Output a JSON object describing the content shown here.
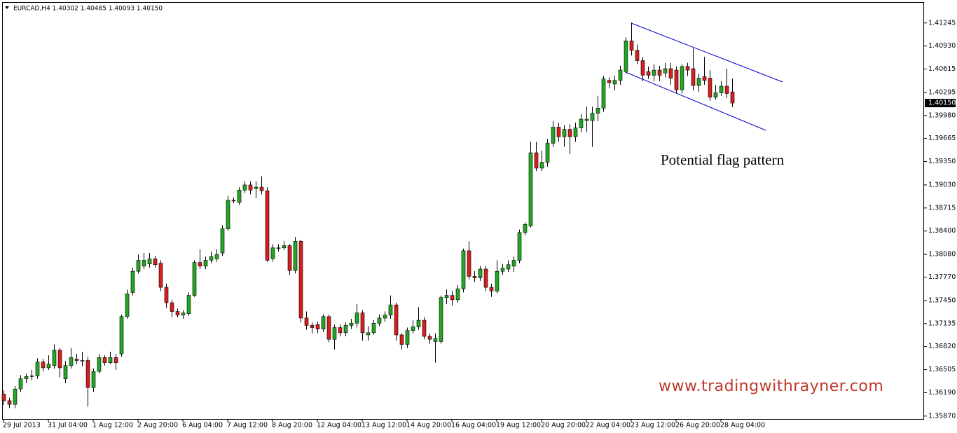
{
  "chart_data": {
    "type": "candlestick",
    "header": "EURCAD,H4  1.40302 1.40485 1.40093 1.40150",
    "annotations": [
      "Potential flag pattern"
    ],
    "watermark": "www.tradingwithrayner.com",
    "up_color": "#22a722",
    "down_color": "#d81e1e",
    "ylim": [
      1.3583,
      1.4153
    ],
    "yticks": [
      1.41245,
      {
        "value": 1.4093,
        "label": "1.40930"
      },
      1.40615,
      1.40295,
      {
        "value": 1.3998,
        "label": "1.39980"
      },
      1.39665,
      {
        "value": 1.3935,
        "label": "1.39350"
      },
      {
        "value": 1.3903,
        "label": "1.39030"
      },
      1.38715,
      {
        "value": 1.384,
        "label": "1.38400"
      },
      {
        "value": 1.3808,
        "label": "1.38080"
      },
      {
        "value": 1.3777,
        "label": "1.37770"
      },
      {
        "value": 1.3745,
        "label": "1.37450"
      },
      1.37135,
      {
        "value": 1.3682,
        "label": "1.36820"
      },
      1.36505,
      {
        "value": 1.3619,
        "label": "1.36190"
      },
      {
        "value": 1.3587,
        "label": "1.35870"
      }
    ],
    "last_price": {
      "value": 1.4015,
      "label": "1.40150"
    },
    "categories": [
      "29 Jul 2013",
      null,
      null,
      null,
      null,
      null,
      null,
      null,
      "31 Jul 04:00",
      null,
      null,
      null,
      null,
      null,
      null,
      null,
      "1 Aug 12:00",
      null,
      null,
      null,
      null,
      null,
      null,
      null,
      "2 Aug 20:00",
      null,
      null,
      null,
      null,
      null,
      null,
      null,
      "6 Aug 04:00",
      null,
      null,
      null,
      null,
      null,
      null,
      null,
      "7 Aug 12:00",
      null,
      null,
      null,
      null,
      null,
      null,
      null,
      "8 Aug 20:00",
      null,
      null,
      null,
      null,
      null,
      null,
      null,
      "12 Aug 04:00",
      null,
      null,
      null,
      null,
      null,
      null,
      null,
      "13 Aug 12:00",
      null,
      null,
      null,
      null,
      null,
      null,
      null,
      "14 Aug 20:00",
      null,
      null,
      null,
      null,
      null,
      null,
      null,
      "16 Aug 04:00",
      null,
      null,
      null,
      null,
      null,
      null,
      null,
      "19 Aug 12:00",
      null,
      null,
      null,
      null,
      null,
      null,
      null,
      "20 Aug 20:00",
      null,
      null,
      null,
      null,
      null,
      null,
      null,
      "22 Aug 04:00",
      null,
      null,
      null,
      null,
      null,
      null,
      null,
      "23 Aug 12:00",
      null,
      null,
      null,
      null,
      null,
      null,
      null,
      "26 Aug 20:00",
      null,
      null,
      null,
      null,
      null,
      null,
      null,
      "28 Aug 04:00",
      null,
      null
    ],
    "candles": [
      [
        1.3617,
        1.3622,
        1.3602,
        1.3608
      ],
      [
        1.3608,
        1.3612,
        1.3598,
        1.3603
      ],
      [
        1.3603,
        1.3628,
        1.3598,
        1.3624
      ],
      [
        1.3624,
        1.3643,
        1.362,
        1.3638
      ],
      [
        1.3638,
        1.3645,
        1.3632,
        1.3641
      ],
      [
        1.3641,
        1.365,
        1.3636,
        1.3642
      ],
      [
        1.3642,
        1.3666,
        1.3638,
        1.3661
      ],
      [
        1.3661,
        1.3665,
        1.3648,
        1.3653
      ],
      [
        1.3653,
        1.367,
        1.365,
        1.3658
      ],
      [
        1.3656,
        1.3685,
        1.3652,
        1.3677
      ],
      [
        1.3677,
        1.368,
        1.364,
        1.3653
      ],
      [
        1.3638,
        1.3662,
        1.3632,
        1.3656
      ],
      [
        1.3656,
        1.368,
        1.3652,
        1.3667
      ],
      [
        1.3665,
        1.3672,
        1.3658,
        1.3663
      ],
      [
        1.3663,
        1.3675,
        1.3655,
        1.3663
      ],
      [
        1.3663,
        1.3668,
        1.36,
        1.3626
      ],
      [
        1.3626,
        1.3652,
        1.362,
        1.3648
      ],
      [
        1.3648,
        1.3672,
        1.3645,
        1.3667
      ],
      [
        1.3667,
        1.367,
        1.3656,
        1.366
      ],
      [
        1.366,
        1.3675,
        1.3658,
        1.3667
      ],
      [
        1.3667,
        1.3672,
        1.365,
        1.366
      ],
      [
        1.3672,
        1.3726,
        1.3668,
        1.3723
      ],
      [
        1.3723,
        1.376,
        1.372,
        1.3754
      ],
      [
        1.3756,
        1.379,
        1.3752,
        1.3785
      ],
      [
        1.3785,
        1.3808,
        1.3782,
        1.38
      ],
      [
        1.3792,
        1.381,
        1.3788,
        1.38
      ],
      [
        1.3795,
        1.381,
        1.379,
        1.3802
      ],
      [
        1.3802,
        1.3806,
        1.379,
        1.3794
      ],
      [
        1.3796,
        1.38,
        1.3758,
        1.3763
      ],
      [
        1.3763,
        1.3768,
        1.3735,
        1.3742
      ],
      [
        1.3742,
        1.3746,
        1.3722,
        1.373
      ],
      [
        1.373,
        1.3734,
        1.3722,
        1.3725
      ],
      [
        1.3725,
        1.3732,
        1.372,
        1.3728
      ],
      [
        1.3727,
        1.3756,
        1.3724,
        1.3752
      ],
      [
        1.3752,
        1.38,
        1.375,
        1.3797
      ],
      [
        1.3797,
        1.3815,
        1.3788,
        1.3792
      ],
      [
        1.3792,
        1.3805,
        1.3788,
        1.38
      ],
      [
        1.38,
        1.3812,
        1.3796,
        1.3805
      ],
      [
        1.3802,
        1.3815,
        1.3798,
        1.3808
      ],
      [
        1.381,
        1.3848,
        1.3806,
        1.3843
      ],
      [
        1.3843,
        1.3888,
        1.384,
        1.3882
      ],
      [
        1.3882,
        1.3886,
        1.3878,
        1.3881
      ],
      [
        1.3879,
        1.39,
        1.3876,
        1.3896
      ],
      [
        1.3896,
        1.3908,
        1.3892,
        1.3903
      ],
      [
        1.3903,
        1.3908,
        1.389,
        1.3896
      ],
      [
        1.3898,
        1.3908,
        1.3885,
        1.39
      ],
      [
        1.39,
        1.3915,
        1.389,
        1.3895
      ],
      [
        1.3895,
        1.39,
        1.3798,
        1.38
      ],
      [
        1.3802,
        1.3822,
        1.3798,
        1.3817
      ],
      [
        1.3817,
        1.3822,
        1.3812,
        1.3817
      ],
      [
        1.3817,
        1.3826,
        1.3814,
        1.382
      ],
      [
        1.382,
        1.3822,
        1.378,
        1.3786
      ],
      [
        1.3786,
        1.3832,
        1.3782,
        1.3826
      ],
      [
        1.3826,
        1.3828,
        1.3715,
        1.3721
      ],
      [
        1.3721,
        1.373,
        1.3705,
        1.3711
      ],
      [
        1.3711,
        1.3715,
        1.37,
        1.3708
      ],
      [
        1.3712,
        1.3716,
        1.37,
        1.3706
      ],
      [
        1.3706,
        1.3726,
        1.3702,
        1.3723
      ],
      [
        1.3723,
        1.3726,
        1.3688,
        1.3692
      ],
      [
        1.3692,
        1.3712,
        1.3678,
        1.3708
      ],
      [
        1.3708,
        1.3712,
        1.3696,
        1.3701
      ],
      [
        1.3701,
        1.3715,
        1.3696,
        1.3711
      ],
      [
        1.3711,
        1.372,
        1.3706,
        1.3714
      ],
      [
        1.3714,
        1.374,
        1.3708,
        1.3728
      ],
      [
        1.3728,
        1.3732,
        1.369,
        1.3701
      ],
      [
        1.3698,
        1.371,
        1.369,
        1.3701
      ],
      [
        1.3701,
        1.3718,
        1.3698,
        1.3714
      ],
      [
        1.3714,
        1.3726,
        1.371,
        1.3721
      ],
      [
        1.3721,
        1.373,
        1.3716,
        1.3725
      ],
      [
        1.3725,
        1.3752,
        1.372,
        1.3739
      ],
      [
        1.3739,
        1.3742,
        1.369,
        1.3698
      ],
      [
        1.3698,
        1.37,
        1.3678,
        1.3685
      ],
      [
        1.3685,
        1.3708,
        1.368,
        1.3704
      ],
      [
        1.3704,
        1.3718,
        1.37,
        1.3709
      ],
      [
        1.3709,
        1.3736,
        1.3705,
        1.3718
      ],
      [
        1.3718,
        1.3722,
        1.3692,
        1.3696
      ],
      [
        1.3696,
        1.37,
        1.3686,
        1.3692
      ],
      [
        1.3689,
        1.37,
        1.366,
        1.3693
      ],
      [
        1.3689,
        1.3752,
        1.3686,
        1.3749
      ],
      [
        1.3749,
        1.376,
        1.374,
        1.3752
      ],
      [
        1.3752,
        1.3758,
        1.3738,
        1.3746
      ],
      [
        1.3746,
        1.3766,
        1.3742,
        1.3761
      ],
      [
        1.3761,
        1.3816,
        1.3756,
        1.3813
      ],
      [
        1.3813,
        1.3826,
        1.3774,
        1.3778
      ],
      [
        1.3778,
        1.3785,
        1.377,
        1.3776
      ],
      [
        1.3776,
        1.3792,
        1.3772,
        1.3788
      ],
      [
        1.3788,
        1.3792,
        1.3758,
        1.3763
      ],
      [
        1.3763,
        1.3768,
        1.375,
        1.3758
      ],
      [
        1.3758,
        1.38,
        1.3755,
        1.3785
      ],
      [
        1.3785,
        1.3795,
        1.378,
        1.3789
      ],
      [
        1.3788,
        1.38,
        1.3784,
        1.3794
      ],
      [
        1.3792,
        1.3805,
        1.3784,
        1.38
      ],
      [
        1.38,
        1.3842,
        1.3796,
        1.3838
      ],
      [
        1.3838,
        1.3852,
        1.3834,
        1.3849
      ],
      [
        1.3847,
        1.3962,
        1.3845,
        1.3947
      ],
      [
        1.3947,
        1.3962,
        1.3922,
        1.3926
      ],
      [
        1.3926,
        1.395,
        1.3922,
        1.3934
      ],
      [
        1.3934,
        1.3966,
        1.3928,
        1.396
      ],
      [
        1.396,
        1.399,
        1.3955,
        1.3982
      ],
      [
        1.3982,
        1.3988,
        1.3962,
        1.3969
      ],
      [
        1.3969,
        1.3985,
        1.3955,
        1.3979
      ],
      [
        1.3979,
        1.3986,
        1.3945,
        1.3969
      ],
      [
        1.3969,
        1.3988,
        1.3962,
        1.3981
      ],
      [
        1.3981,
        1.4,
        1.3975,
        1.3993
      ],
      [
        1.3991,
        1.401,
        1.3975,
        1.3993
      ],
      [
        1.3991,
        1.401,
        1.3955,
        1.4001
      ],
      [
        1.4001,
        1.4025,
        1.399,
        1.4008
      ],
      [
        1.4008,
        1.4052,
        1.4003,
        1.4048
      ],
      [
        1.4046,
        1.405,
        1.4035,
        1.4043
      ],
      [
        1.4041,
        1.4052,
        1.4032,
        1.4046
      ],
      [
        1.4046,
        1.4066,
        1.404,
        1.406
      ],
      [
        1.4058,
        1.4105,
        1.4055,
        1.41
      ],
      [
        1.41,
        1.4125,
        1.408,
        1.4087
      ],
      [
        1.4087,
        1.4095,
        1.4068,
        1.4073
      ],
      [
        1.4073,
        1.4078,
        1.4045,
        1.4053
      ],
      [
        1.4058,
        1.4065,
        1.4048,
        1.4053
      ],
      [
        1.4053,
        1.4068,
        1.4045,
        1.406
      ],
      [
        1.406,
        1.4066,
        1.4045,
        1.4053
      ],
      [
        1.4056,
        1.407,
        1.405,
        1.4062
      ],
      [
        1.4062,
        1.407,
        1.404,
        1.4049
      ],
      [
        1.406,
        1.4065,
        1.4028,
        1.4033
      ],
      [
        1.4033,
        1.4068,
        1.4028,
        1.4065
      ],
      [
        1.4065,
        1.407,
        1.4052,
        1.406
      ],
      [
        1.4062,
        1.409,
        1.4032,
        1.4039
      ],
      [
        1.4039,
        1.4055,
        1.403,
        1.4049
      ],
      [
        1.4051,
        1.4078,
        1.404,
        1.4046
      ],
      [
        1.4049,
        1.406,
        1.4018,
        1.4023
      ],
      [
        1.4023,
        1.404,
        1.402,
        1.4029
      ],
      [
        1.4029,
        1.4045,
        1.4025,
        1.4038
      ],
      [
        1.4038,
        1.4062,
        1.4022,
        1.4028
      ],
      [
        1.40302,
        1.40485,
        1.40093,
        1.4015
      ]
    ]
  }
}
